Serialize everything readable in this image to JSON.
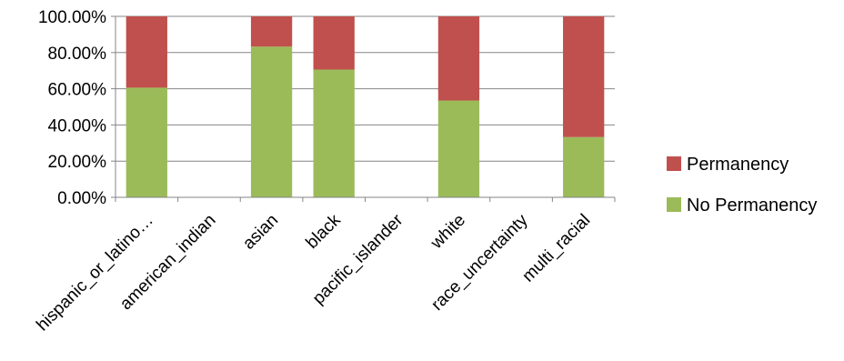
{
  "chart_data": {
    "type": "bar",
    "stacked": true,
    "categories": [
      "hispanic_or_latino…",
      "american_indian",
      "asian",
      "black",
      "pacific_islander",
      "white",
      "race_uncertainty",
      "multi_racial"
    ],
    "series": [
      {
        "name": "No Permanency",
        "color": "#9bbb59",
        "values": [
          60.6,
          0,
          83.3,
          70.6,
          0,
          53.5,
          0,
          33.3
        ]
      },
      {
        "name": "Permanency",
        "color": "#c0504d",
        "values": [
          39.4,
          0,
          16.7,
          29.4,
          0,
          46.5,
          0,
          66.7
        ]
      }
    ],
    "y_ticks": [
      "0.00%",
      "20.00%",
      "40.00%",
      "60.00%",
      "80.00%",
      "100.00%"
    ],
    "ylim": [
      0,
      100
    ],
    "grid": true,
    "legend_position": "right",
    "legend_order": [
      "Permanency",
      "No Permanency"
    ]
  }
}
